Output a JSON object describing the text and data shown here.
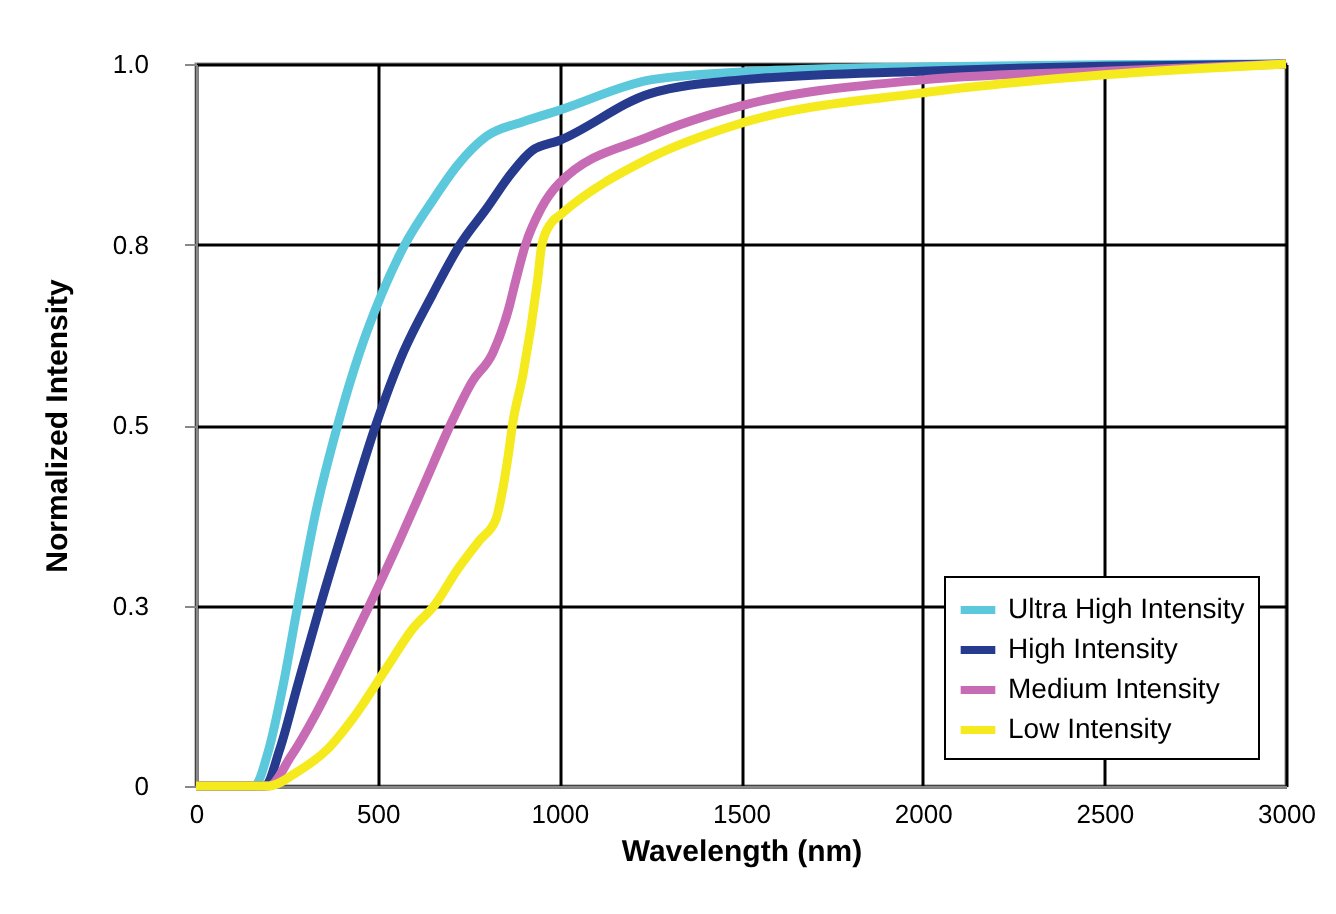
{
  "chart_data": {
    "type": "line",
    "xlabel": "Wavelength (nm)",
    "ylabel": "Normalized Intensity",
    "xlim": [
      0,
      3000
    ],
    "xticks": [
      0,
      500,
      1000,
      1500,
      2000,
      2500,
      3000
    ],
    "ylim": [
      0,
      1.0
    ],
    "yticks": [
      0,
      {
        "value": 0.25,
        "label": "0.3"
      },
      0.5,
      {
        "value": 0.75,
        "label": "0.8"
      },
      {
        "value": 1.0,
        "label": "1.0"
      }
    ],
    "grid": true,
    "legend": "bottom right",
    "line_style": "solid",
    "marker": "none",
    "series": [
      {
        "name": "Ultra High Intensity",
        "color": "#5bc8dc",
        "x": [
          0,
          160,
          200,
          240,
          280,
          330,
          390,
          450,
          510,
          575,
          650,
          720,
          800,
          900,
          1000,
          1250,
          1500,
          2000,
          2500,
          3000
        ],
        "values": [
          0,
          0,
          0.05,
          0.14,
          0.25,
          0.38,
          0.5,
          0.6,
          0.68,
          0.75,
          0.81,
          0.86,
          0.9,
          0.92,
          0.936,
          0.978,
          0.989,
          0.996,
          0.999,
          1.0
        ]
      },
      {
        "name": "High Intensity",
        "color": "#263a8e",
        "x": [
          0,
          190,
          230,
          280,
          342,
          420,
          495,
          570,
          650,
          727,
          800,
          870,
          925,
          1000,
          1250,
          1500,
          2000,
          2500,
          3000
        ],
        "values": [
          0,
          0,
          0.05,
          0.14,
          0.25,
          0.38,
          0.5,
          0.6,
          0.68,
          0.75,
          0.8,
          0.85,
          0.88,
          0.894,
          0.959,
          0.978,
          0.99,
          0.997,
          1.0
        ]
      },
      {
        "name": "Medium Intensity",
        "color": "#c86bb5",
        "x": [
          0,
          200,
          260,
          330,
          400,
          477,
          560,
          630,
          700,
          760,
          817,
          860,
          880,
          907,
          950,
          1000,
          1250,
          1500,
          2000,
          2500,
          3000
        ],
        "values": [
          0,
          0,
          0.04,
          0.1,
          0.17,
          0.25,
          0.34,
          0.42,
          0.5,
          0.56,
          0.6,
          0.66,
          0.7,
          0.75,
          0.8,
          0.835,
          0.9,
          0.942,
          0.978,
          0.99,
          1.0
        ]
      },
      {
        "name": "Low Intensity",
        "color": "#f5ea1e",
        "x": [
          0,
          200,
          280,
          360,
          441,
          520,
          600,
          656,
          720,
          780,
          826,
          840,
          860,
          871,
          900,
          940,
          952,
          978,
          1000,
          1250,
          1500,
          2000,
          2500,
          3000
        ],
        "values": [
          0,
          0,
          0.02,
          0.05,
          0.1,
          0.16,
          0.22,
          0.25,
          0.3,
          0.34,
          0.37,
          0.4,
          0.46,
          0.5,
          0.57,
          0.7,
          0.75,
          0.78,
          0.79,
          0.87,
          0.918,
          0.96,
          0.985,
          1.0
        ]
      }
    ]
  }
}
